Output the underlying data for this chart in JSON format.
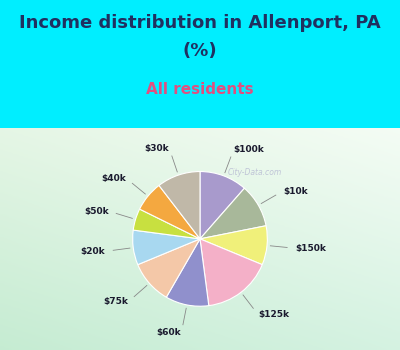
{
  "labels": [
    "$100k",
    "$10k",
    "$150k",
    "$125k",
    "$60k",
    "$75k",
    "$20k",
    "$50k",
    "$40k",
    "$30k"
  ],
  "sizes": [
    11,
    10,
    9,
    16,
    10,
    10,
    8,
    5,
    7,
    10
  ],
  "colors": [
    "#a89acc",
    "#a8b89a",
    "#f0f07a",
    "#f4b0c8",
    "#9090cc",
    "#f4c8a8",
    "#a8d8f0",
    "#c8e040",
    "#f4a840",
    "#c0b8a8"
  ],
  "title_line1": "Income distribution in Allenport, PA",
  "title_line2": "(%)",
  "subtitle": "All residents",
  "title_color": "#203060",
  "subtitle_color": "#e05080",
  "bg_color": "#00eeff",
  "startangle": 90,
  "title_fontsize": 13,
  "subtitle_fontsize": 11
}
